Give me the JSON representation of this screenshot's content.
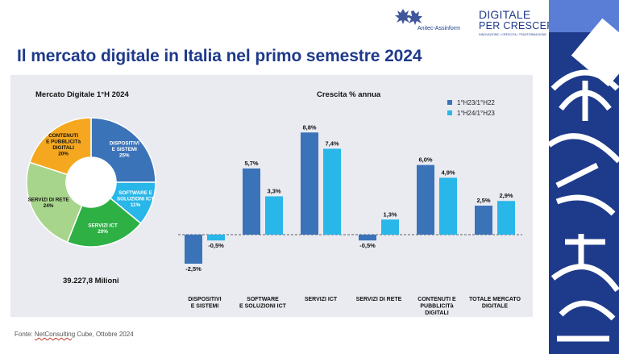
{
  "header": {
    "title": "Il mercato digitale in Italia nel primo semestre 2024",
    "logo1_text": "Anitec-Assinform",
    "logo2_line1": "DIGITALE",
    "logo2_line2": "PER CRESCERE",
    "logo2_tagline": "INNOVAZIONE • CRESCITA • TRASFORMAZIONE"
  },
  "footer": {
    "source_prefix": "Fonte: ",
    "source_brand": "NetConsulting",
    "source_rest": " Cube, Ottobre 2024"
  },
  "colors": {
    "navy": "#1e3a8a",
    "series1": "#3b73b9",
    "series2": "#29b6e8",
    "panel": "#e9ebf1"
  },
  "chart_data": [
    {
      "type": "pie",
      "title": "Mercato Digitale 1°H 2024",
      "total_label": "39.227,8 Milioni",
      "donut": true,
      "slices": [
        {
          "label": [
            "DISPOSITIVI",
            "E SISTEMI",
            "25%"
          ],
          "value": 25,
          "color": "#3b73b9"
        },
        {
          "label": [
            "SOFTWARE E",
            "SOLUZIONI ICT",
            "11%"
          ],
          "value": 11,
          "color": "#29b6e8"
        },
        {
          "label": [
            "SERVIZI ICT",
            "20%"
          ],
          "value": 20,
          "color": "#2eb045"
        },
        {
          "label": [
            "SERVIZI DI RETE",
            "24%"
          ],
          "value": 24,
          "color": "#a8d58c"
        },
        {
          "label": [
            "CONTENUTI",
            "E PUBBLICITà",
            "DIGITALI",
            "20%"
          ],
          "value": 20,
          "color": "#f5a81f"
        }
      ]
    },
    {
      "type": "bar",
      "title": "Crescita % annua",
      "categories": [
        [
          "DISPOSITIVI",
          "E SISTEMI"
        ],
        [
          "SOFTWARE",
          "E SOLUZIONI ICT"
        ],
        [
          "SERVIZI ICT"
        ],
        [
          "SERVIZI DI RETE"
        ],
        [
          "CONTENUTI E",
          "PUBBLICITà",
          "DIGITALI"
        ],
        [
          "TOTALE MERCATO",
          "DIGITALE"
        ]
      ],
      "series": [
        {
          "name": "1°H23/1°H22",
          "color": "#3b73b9",
          "values": [
            -2.5,
            5.7,
            8.8,
            -0.5,
            6.0,
            2.5
          ],
          "labels": [
            "-2,5%",
            "5,7%",
            "8,8%",
            "-0,5%",
            "6,0%",
            "2,5%"
          ]
        },
        {
          "name": "1°H24/1°H23",
          "color": "#29b6e8",
          "values": [
            -0.5,
            3.3,
            7.4,
            1.3,
            4.9,
            2.9
          ],
          "labels": [
            "-0,5%",
            "3,3%",
            "7,4%",
            "1,3%",
            "4,9%",
            "2,9%"
          ]
        }
      ],
      "legend": "top-right",
      "baseline": "dashed"
    }
  ]
}
